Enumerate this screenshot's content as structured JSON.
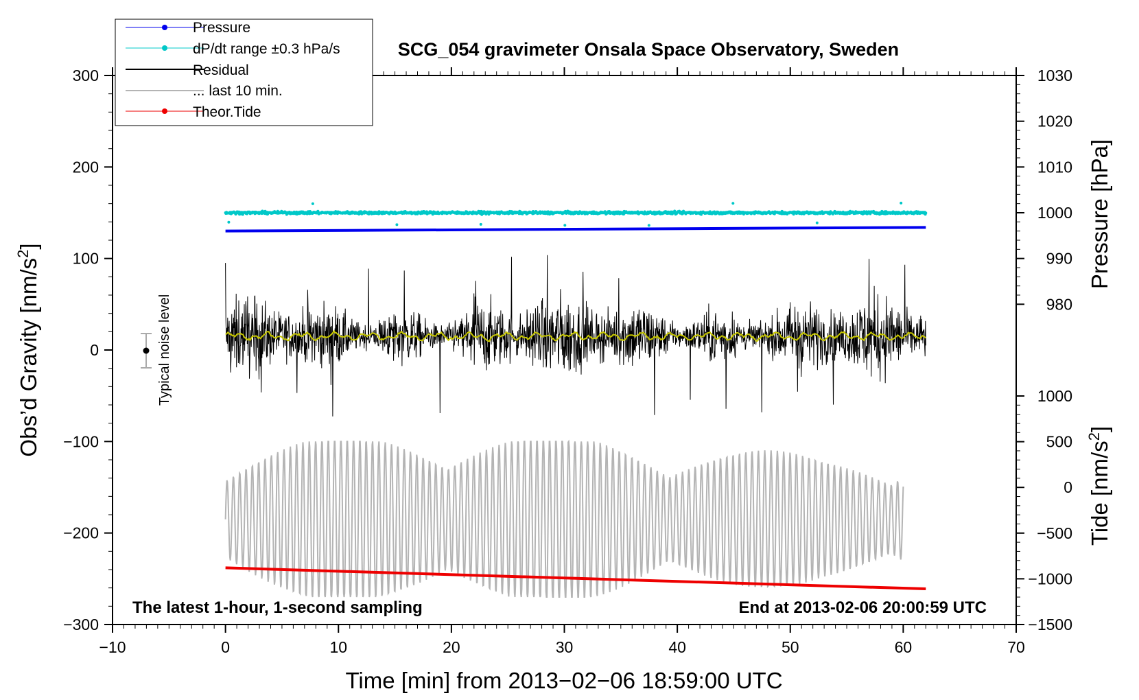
{
  "chart_data": {
    "type": "line",
    "title": "SCG_054 gravimeter Onsala Space Observatory, Sweden",
    "xlabel": "Time [min] from 2013−02−06 18:59:00 UTC",
    "ylabel_left": "Obs’d Gravity [nm/s",
    "ylabel_left_sup": "2",
    "ylabel_left_end": "]",
    "ylabel_right_pressure": "Pressure [hPa]",
    "ylabel_right_tide": "Tide [nm/s",
    "ylabel_right_tide_sup": "2",
    "ylabel_right_tide_end": "]",
    "xlim": [
      -10,
      70
    ],
    "ylim": [
      -300,
      300
    ],
    "pressure_lim": [
      970,
      1030
    ],
    "tide_lim": [
      -1500,
      1500
    ],
    "grid": false,
    "legend_position": "top-left",
    "x_ticks": [
      -10,
      0,
      10,
      20,
      30,
      40,
      50,
      60,
      70
    ],
    "x_tick_labels": [
      "−10",
      "0",
      "10",
      "20",
      "30",
      "40",
      "50",
      "60",
      "70"
    ],
    "y_ticks": [
      -300,
      -200,
      -100,
      0,
      100,
      200,
      300
    ],
    "y_tick_labels": [
      "−300",
      "−200",
      "−100",
      "0",
      "100",
      "200",
      "300"
    ],
    "pressure_ticks": [
      980,
      990,
      1000,
      1010,
      1020,
      1030
    ],
    "pressure_tick_labels": [
      "980",
      "990",
      "1000",
      "1010",
      "1020",
      "1030"
    ],
    "tide_ticks": [
      -1500,
      -1000,
      -500,
      0,
      500,
      1000
    ],
    "tide_tick_labels": [
      "−1500",
      "−1000",
      "−500",
      "0",
      "500",
      "1000"
    ],
    "series": [
      {
        "name": "Pressure",
        "color": "#0000ee",
        "axis": "pressure",
        "x": [
          0,
          62
        ],
        "y": [
          996.0,
          996.8
        ]
      },
      {
        "name": "dP/dt range ±0.3 hPa/s",
        "color": "#00c8c8",
        "axis": "pressure",
        "x_range": [
          0,
          62
        ],
        "center": 1000.0,
        "spread": 0.5
      },
      {
        "name": "Residual",
        "color": "#000000",
        "axis": "gravity",
        "x_range": [
          0,
          62
        ],
        "center": 15,
        "range": [
          -95,
          130
        ]
      },
      {
        "name": "... last 10 min.",
        "color": "#b4b4b4",
        "axis": "gravity",
        "x_range": [
          0,
          60
        ],
        "range": [
          -270,
          -100
        ]
      },
      {
        "name": "Theor.Tide",
        "color": "#ee0000",
        "axis": "tide",
        "x": [
          0,
          62
        ],
        "y": [
          -880,
          -1110
        ]
      }
    ],
    "smoothed_residual": {
      "color": "#c8c800",
      "level": 15
    },
    "noise_level": {
      "label": "Typical noise level",
      "x": -7,
      "y": 0,
      "error": 20
    },
    "annotations": {
      "left": "The latest 1-hour, 1-second sampling",
      "right": "End at 2013-02-06 20:00:59 UTC"
    }
  }
}
